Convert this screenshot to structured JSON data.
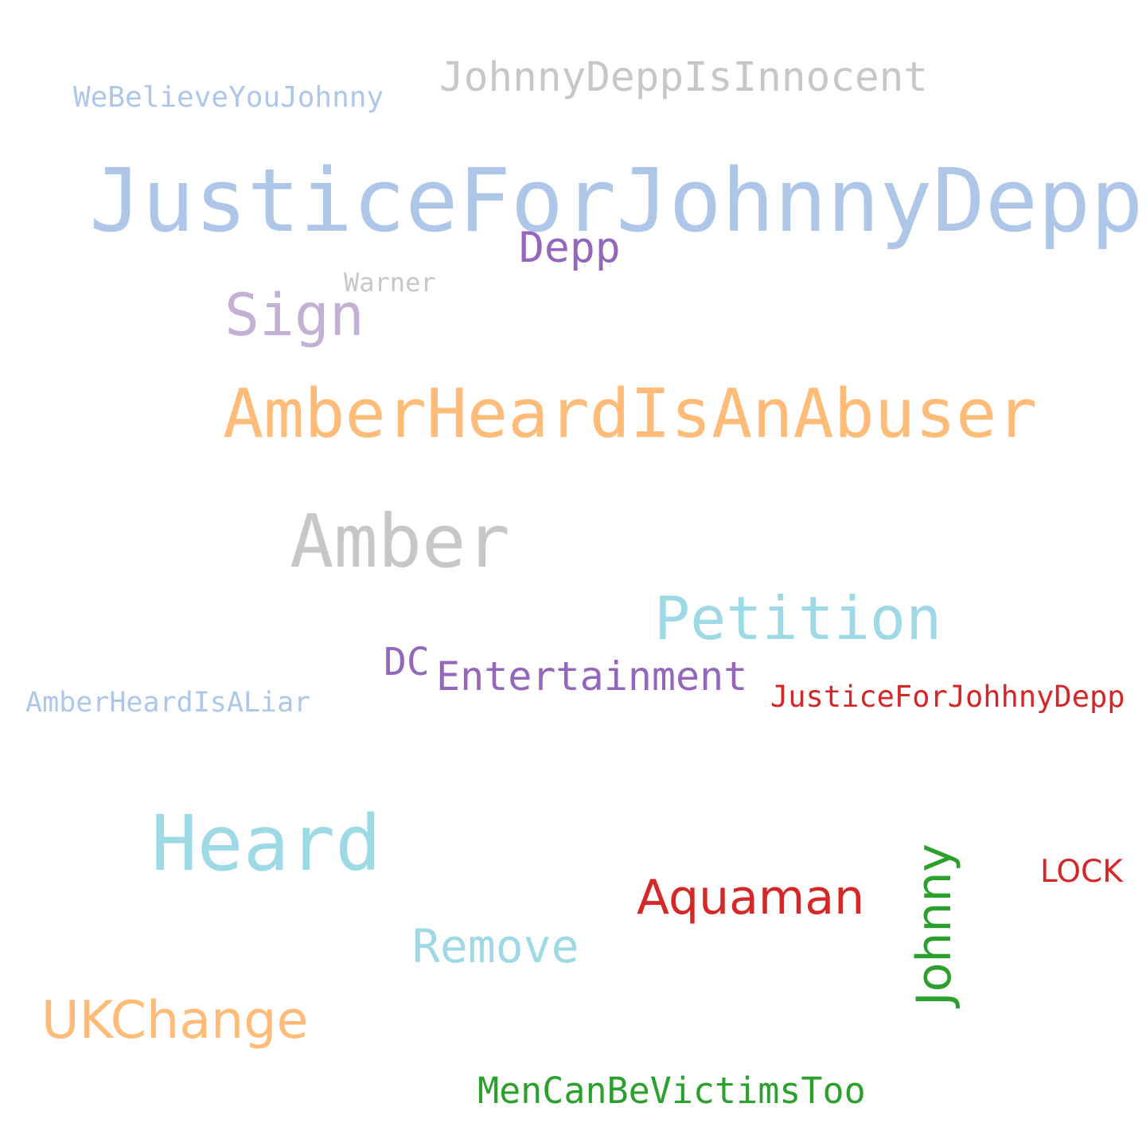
{
  "words": [
    {
      "text": "JohnnyDeppIsInnocent",
      "color": "#c7c7c7"
    },
    {
      "text": "WeBelieveYouJohnny",
      "color": "#aec7e8"
    },
    {
      "text": "JusticeForJohnnyDepp",
      "color": "#aec7e8"
    },
    {
      "text": "Depp",
      "color": "#9467bd"
    },
    {
      "text": "Warner",
      "color": "#c7c7c7"
    },
    {
      "text": "Sign",
      "color": "#c5b0d5"
    },
    {
      "text": "AmberHeardIsAnAbuser",
      "color": "#ffbb78"
    },
    {
      "text": "Amber",
      "color": "#c7c7c7"
    },
    {
      "text": "Petition",
      "color": "#9edae5"
    },
    {
      "text": "DC",
      "color": "#9467bd"
    },
    {
      "text": "Entertainment",
      "color": "#9467bd"
    },
    {
      "text": "AmberHeardIsALiar",
      "color": "#aec7e8"
    },
    {
      "text": "JusticeForJohhnyDepp",
      "color": "#d62728"
    },
    {
      "text": "Heard",
      "color": "#9edae5"
    },
    {
      "text": "Aquaman",
      "color": "#d62728"
    },
    {
      "text": "Johnny",
      "color": "#2ca02c"
    },
    {
      "text": "LOCK",
      "color": "#d62728"
    },
    {
      "text": "Remove",
      "color": "#9edae5"
    },
    {
      "text": "UKChange",
      "color": "#ffbb78"
    },
    {
      "text": "MenCanBeVictimsToo",
      "color": "#2ca02c"
    }
  ]
}
